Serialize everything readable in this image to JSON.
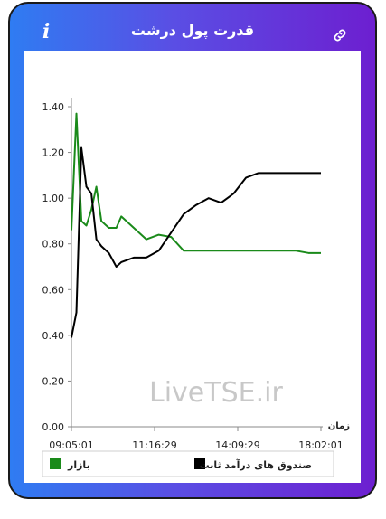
{
  "header": {
    "title": "قدرت پول درشت",
    "info_icon": "info-icon",
    "link_icon": "link-icon"
  },
  "watermark": "LiveTSE.ir",
  "colors": {
    "market": "#1a8a1a",
    "fund": "#000000"
  },
  "chart_data": {
    "type": "line",
    "xlabel": "زمان",
    "ylabel": "",
    "ylim": [
      0,
      1.4
    ],
    "y_ticks": [
      "0.00",
      "0.20",
      "0.40",
      "0.60",
      "0.80",
      "1.00",
      "1.20",
      "1.40"
    ],
    "x_ticks": [
      "09:05:01",
      "11:16:29",
      "14:09:29",
      "18:02:01"
    ],
    "x": [
      0,
      0.02,
      0.04,
      0.06,
      0.08,
      0.1,
      0.12,
      0.15,
      0.18,
      0.2,
      0.25,
      0.3,
      0.35,
      0.4,
      0.45,
      0.5,
      0.55,
      0.6,
      0.65,
      0.7,
      0.75,
      0.8,
      0.85,
      0.9,
      0.95,
      1.0
    ],
    "series": [
      {
        "name": "بازار",
        "color": "#1a8a1a",
        "values": [
          0.86,
          1.37,
          0.9,
          0.88,
          0.95,
          1.05,
          0.9,
          0.87,
          0.87,
          0.92,
          0.87,
          0.82,
          0.84,
          0.83,
          0.77,
          0.77,
          0.77,
          0.77,
          0.77,
          0.77,
          0.77,
          0.77,
          0.77,
          0.77,
          0.76,
          0.76
        ]
      },
      {
        "name": "صندوق های درآمد ثابت",
        "color": "#000000",
        "values": [
          0.39,
          0.5,
          1.22,
          1.05,
          1.02,
          0.82,
          0.79,
          0.76,
          0.7,
          0.72,
          0.74,
          0.74,
          0.77,
          0.85,
          0.93,
          0.97,
          1.0,
          0.98,
          1.02,
          1.09,
          1.11,
          1.11,
          1.11,
          1.11,
          1.11,
          1.11
        ]
      }
    ],
    "legend_position": "bottom"
  }
}
